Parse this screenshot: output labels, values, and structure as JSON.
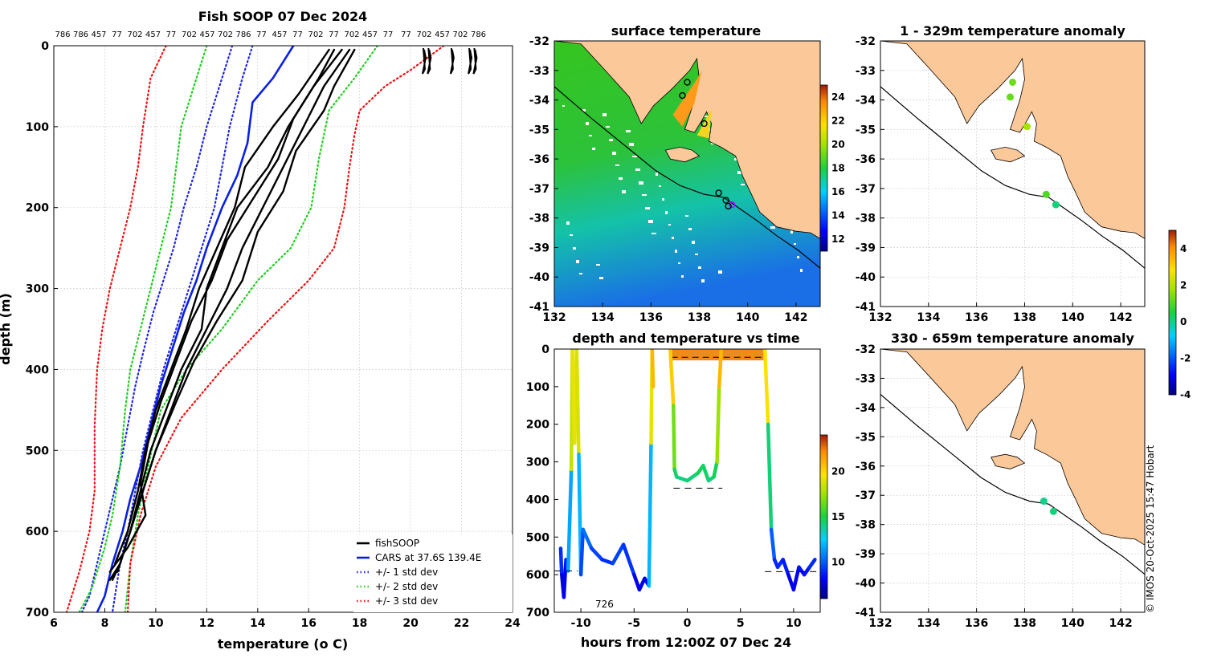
{
  "colors": {
    "fish": "#000000",
    "cars": "#0a1fe6",
    "std1": "#1f24e6",
    "std2": "#22cc22",
    "std3": "#ee1111",
    "land": "#fbc899"
  },
  "footer": "© IMOS 20-Oct-2025 15:47 Hobart",
  "chart_data": [
    {
      "id": "profile",
      "type": "line",
      "title": "Fish SOOP 07 Dec 2024",
      "xlabel": "temperature (o C)",
      "ylabel": "depth (m)",
      "xlim": [
        6,
        24
      ],
      "ylim": [
        700,
        0
      ],
      "xticks": [
        6,
        8,
        10,
        12,
        14,
        16,
        18,
        20,
        22,
        24
      ],
      "yticks": [
        0,
        100,
        200,
        300,
        400,
        500,
        600,
        700
      ],
      "top_labels": [
        "786",
        "786",
        "457",
        "77",
        "702",
        "457",
        "77",
        "702",
        "457",
        "702",
        "786",
        "77",
        "457",
        "77",
        "702",
        "77",
        "702",
        "457",
        "77",
        "77",
        "702",
        "457",
        "702",
        "786"
      ],
      "legend": [
        "fishSOOP",
        "CARS at 37.6S 139.4E",
        "+/- 1 std dev",
        "+/- 2 std dev",
        "+/- 3 std dev"
      ],
      "series": [
        {
          "name": "CARS at 37.6S 139.4E",
          "style": "solid",
          "color": "#0a1fe6",
          "x": [
            15.4,
            14.6,
            13.8,
            13.6,
            13.2,
            12.6,
            12.0,
            11.6,
            11.1,
            10.6,
            10.2,
            9.8,
            9.4,
            9.0,
            8.7,
            8.3,
            8.0,
            7.7
          ],
          "y": [
            0,
            40,
            70,
            120,
            160,
            200,
            250,
            290,
            330,
            380,
            420,
            470,
            520,
            560,
            600,
            640,
            680,
            700
          ]
        },
        {
          "name": "cars_minus_1sd",
          "style": "dotted",
          "color": "#1f24e6",
          "x": [
            13.0,
            12.6,
            12.0,
            11.6,
            11.1,
            10.7,
            10.3,
            9.9,
            9.5,
            9.2,
            8.9,
            8.6,
            8.3,
            8.0,
            7.7,
            7.4,
            7.1
          ],
          "y": [
            0,
            40,
            100,
            150,
            200,
            250,
            290,
            330,
            380,
            420,
            470,
            520,
            560,
            600,
            640,
            680,
            700
          ]
        },
        {
          "name": "cars_plus_1sd",
          "style": "dotted",
          "color": "#1f24e6",
          "x": [
            13.8,
            13.4,
            12.9,
            12.6,
            12.3,
            11.8,
            11.3,
            10.8,
            10.3,
            9.9,
            9.5,
            9.2,
            8.9,
            8.6,
            8.4,
            8.3
          ],
          "y": [
            0,
            40,
            100,
            150,
            200,
            250,
            300,
            350,
            400,
            450,
            500,
            550,
            600,
            640,
            680,
            700
          ]
        },
        {
          "name": "cars_minus_2sd",
          "style": "dotted",
          "color": "#22cc22",
          "x": [
            12.0,
            11.6,
            11.0,
            10.8,
            10.6,
            10.2,
            9.8,
            9.4,
            9.0,
            8.8,
            8.6,
            8.3,
            8.0,
            7.5,
            7.0
          ],
          "y": [
            0,
            40,
            100,
            150,
            200,
            250,
            300,
            350,
            400,
            450,
            520,
            580,
            620,
            670,
            700
          ]
        },
        {
          "name": "cars_plus_2sd",
          "style": "dotted",
          "color": "#22cc22",
          "x": [
            18.7,
            17.8,
            16.8,
            16.4,
            16.1,
            15.3,
            14.0,
            12.6,
            11.2,
            10.2,
            9.7,
            9.3,
            9.0,
            8.8
          ],
          "y": [
            0,
            40,
            80,
            140,
            200,
            250,
            290,
            350,
            400,
            450,
            520,
            580,
            640,
            700
          ]
        },
        {
          "name": "cars_minus_3sd",
          "style": "dotted",
          "color": "#ee1111",
          "x": [
            10.4,
            9.8,
            9.5,
            9.3,
            9.0,
            8.6,
            8.2,
            7.9,
            7.7,
            7.6,
            7.6,
            7.4,
            7.0,
            6.5
          ],
          "y": [
            0,
            40,
            100,
            150,
            200,
            250,
            300,
            350,
            400,
            470,
            550,
            600,
            650,
            700
          ]
        },
        {
          "name": "cars_plus_3sd",
          "style": "dotted",
          "color": "#ee1111",
          "x": [
            21.3,
            20.0,
            19.0,
            18.0,
            17.8,
            17.6,
            17.4,
            17.0,
            16.0,
            14.4,
            12.6,
            11.0,
            10.0,
            9.4,
            9.0,
            8.9
          ],
          "y": [
            0,
            30,
            50,
            80,
            110,
            150,
            200,
            250,
            290,
            340,
            400,
            460,
            520,
            580,
            640,
            700
          ]
        },
        {
          "name": "fishSOOP",
          "style": "solid",
          "color": "#000000",
          "x": [
            17.6,
            16.6,
            15.8,
            15.0,
            14.2,
            13.4,
            12.8,
            12.0,
            11.2,
            10.6,
            10.0,
            9.5,
            9.2,
            8.9,
            8.6,
            8.3
          ],
          "y": [
            5,
            50,
            100,
            150,
            200,
            250,
            300,
            350,
            400,
            450,
            500,
            550,
            580,
            610,
            640,
            660
          ]
        },
        {
          "name": "fishSOOP",
          "style": "solid",
          "color": "#000000",
          "x": [
            17.8,
            17.0,
            16.6,
            15.5,
            15.0,
            14.0,
            13.4,
            12.4,
            11.5,
            10.8,
            10.0,
            9.5,
            9.1,
            8.8,
            8.5
          ],
          "y": [
            5,
            50,
            80,
            130,
            180,
            230,
            290,
            340,
            390,
            440,
            500,
            550,
            590,
            620,
            650
          ]
        },
        {
          "name": "fishSOOP",
          "style": "solid",
          "color": "#000000",
          "x": [
            17.3,
            16.2,
            15.2,
            14.4,
            13.2,
            12.6,
            12.0,
            11.8,
            11.0,
            10.4,
            9.8,
            9.4,
            9.0,
            8.6,
            8.2
          ],
          "y": [
            5,
            50,
            100,
            150,
            200,
            250,
            300,
            350,
            400,
            450,
            500,
            550,
            600,
            640,
            660
          ]
        },
        {
          "name": "fishSOOP",
          "style": "solid",
          "color": "#000000",
          "x": [
            16.8,
            15.6,
            14.6,
            13.5,
            13.1,
            12.4,
            11.7,
            11.2,
            10.6,
            10.0,
            9.6,
            9.3,
            8.9,
            8.4
          ],
          "y": [
            5,
            60,
            100,
            150,
            200,
            250,
            300,
            350,
            400,
            450,
            500,
            550,
            600,
            640
          ]
        },
        {
          "name": "fishSOOP",
          "style": "solid",
          "color": "#000000",
          "x": [
            17.0,
            16.4,
            15.4,
            14.8,
            13.8,
            12.8,
            12.2,
            11.4,
            10.8,
            10.2,
            9.7,
            9.4,
            9.6,
            8.9,
            8.2
          ],
          "y": [
            5,
            40,
            90,
            140,
            190,
            240,
            290,
            340,
            390,
            440,
            490,
            540,
            580,
            620,
            650
          ]
        }
      ]
    },
    {
      "id": "sst",
      "type": "heatmap",
      "title": "surface temperature",
      "xlim": [
        132,
        143
      ],
      "ylim": [
        -41,
        -32
      ],
      "xticks": [
        132,
        134,
        136,
        138,
        140,
        142
      ],
      "yticks": [
        -32,
        -33,
        -34,
        -35,
        -36,
        -37,
        -38,
        -39,
        -40,
        -41
      ],
      "colorbar": {
        "min": 11,
        "max": 25,
        "ticks": [
          12,
          14,
          16,
          18,
          20,
          22,
          24
        ]
      },
      "track_points": [
        [
          138.8,
          -37.15
        ],
        [
          139.1,
          -37.4
        ],
        [
          139.35,
          -37.55
        ],
        [
          139.2,
          -37.6
        ],
        [
          138.2,
          -34.8
        ],
        [
          137.5,
          -33.4
        ],
        [
          137.3,
          -33.85
        ]
      ]
    },
    {
      "id": "timedepth",
      "type": "scatter",
      "title": "depth and temperature vs time",
      "xlabel": "hours from 12:00Z 07 Dec 24",
      "xlim": [
        -12.5,
        12.5
      ],
      "ylim": [
        700,
        0
      ],
      "xticks": [
        -10,
        -5,
        0,
        5,
        10
      ],
      "yticks": [
        0,
        100,
        200,
        300,
        400,
        500,
        600,
        700
      ],
      "colorbar": {
        "min": 6,
        "max": 24,
        "ticks": [
          10,
          15,
          20
        ]
      },
      "annotation": "726",
      "series": [
        {
          "name": "haul1",
          "hours": [
            -11.9,
            -11.8,
            -11.6,
            -11.4,
            -11.2,
            -10.9,
            -10.8,
            -10.6,
            -10.4,
            -10.2,
            -10.0,
            -9.8
          ],
          "depth": [
            530,
            600,
            660,
            560,
            590,
            320,
            0,
            250,
            0,
            280,
            600,
            480
          ]
        },
        {
          "name": "haul2",
          "hours": [
            -9.8,
            -9.0,
            -8.0,
            -7.0,
            -6.0,
            -5.0,
            -4.5,
            -4.0,
            -3.6,
            -3.4,
            -3.3,
            -3.2
          ],
          "depth": [
            480,
            530,
            560,
            570,
            520,
            600,
            640,
            610,
            630,
            250,
            0,
            100
          ]
        },
        {
          "name": "haul3",
          "hours": [
            -1.6,
            -1.3,
            -1.2,
            -1.0,
            0.0,
            1.0,
            1.5,
            2.0,
            2.5,
            2.8,
            3.0,
            3.2
          ],
          "depth": [
            0,
            150,
            320,
            340,
            350,
            330,
            310,
            350,
            340,
            300,
            100,
            0
          ]
        },
        {
          "name": "haul4",
          "hours": [
            7.3,
            7.6,
            7.9,
            8.2,
            8.5,
            9.0,
            9.5,
            10.0,
            10.5,
            11.0,
            11.5,
            12.0
          ],
          "depth": [
            0,
            200,
            480,
            560,
            580,
            560,
            600,
            640,
            580,
            600,
            580,
            560
          ]
        }
      ]
    },
    {
      "id": "anom1",
      "type": "scatter",
      "title": "1 - 329m temperature anomaly",
      "xlim": [
        132,
        143
      ],
      "ylim": [
        -41,
        -32
      ],
      "xticks": [
        132,
        134,
        136,
        138,
        140,
        142
      ],
      "yticks": [
        -32,
        -33,
        -34,
        -35,
        -36,
        -37,
        -38,
        -39,
        -40,
        -41
      ],
      "colorbar": {
        "min": -4,
        "max": 5,
        "ticks": [
          -4,
          -2,
          0,
          2,
          4
        ]
      },
      "points": [
        {
          "lon": 137.5,
          "lat": -33.4,
          "anom": 1.3
        },
        {
          "lon": 137.4,
          "lat": -33.9,
          "anom": 1.2
        },
        {
          "lon": 138.1,
          "lat": -34.9,
          "anom": 1.8
        },
        {
          "lon": 138.9,
          "lat": -37.2,
          "anom": 1.0
        },
        {
          "lon": 139.3,
          "lat": -37.55,
          "anom": 0.1
        }
      ]
    },
    {
      "id": "anom2",
      "type": "scatter",
      "title": "330 - 659m temperature anomaly",
      "xlim": [
        132,
        143
      ],
      "ylim": [
        -41,
        -32
      ],
      "xticks": [
        132,
        134,
        136,
        138,
        140,
        142
      ],
      "yticks": [
        -32,
        -33,
        -34,
        -35,
        -36,
        -37,
        -38,
        -39,
        -40,
        -41
      ],
      "points": [
        {
          "lon": 138.8,
          "lat": -37.2,
          "anom": 0.0
        },
        {
          "lon": 139.2,
          "lat": -37.55,
          "anom": 0.1
        }
      ]
    }
  ]
}
